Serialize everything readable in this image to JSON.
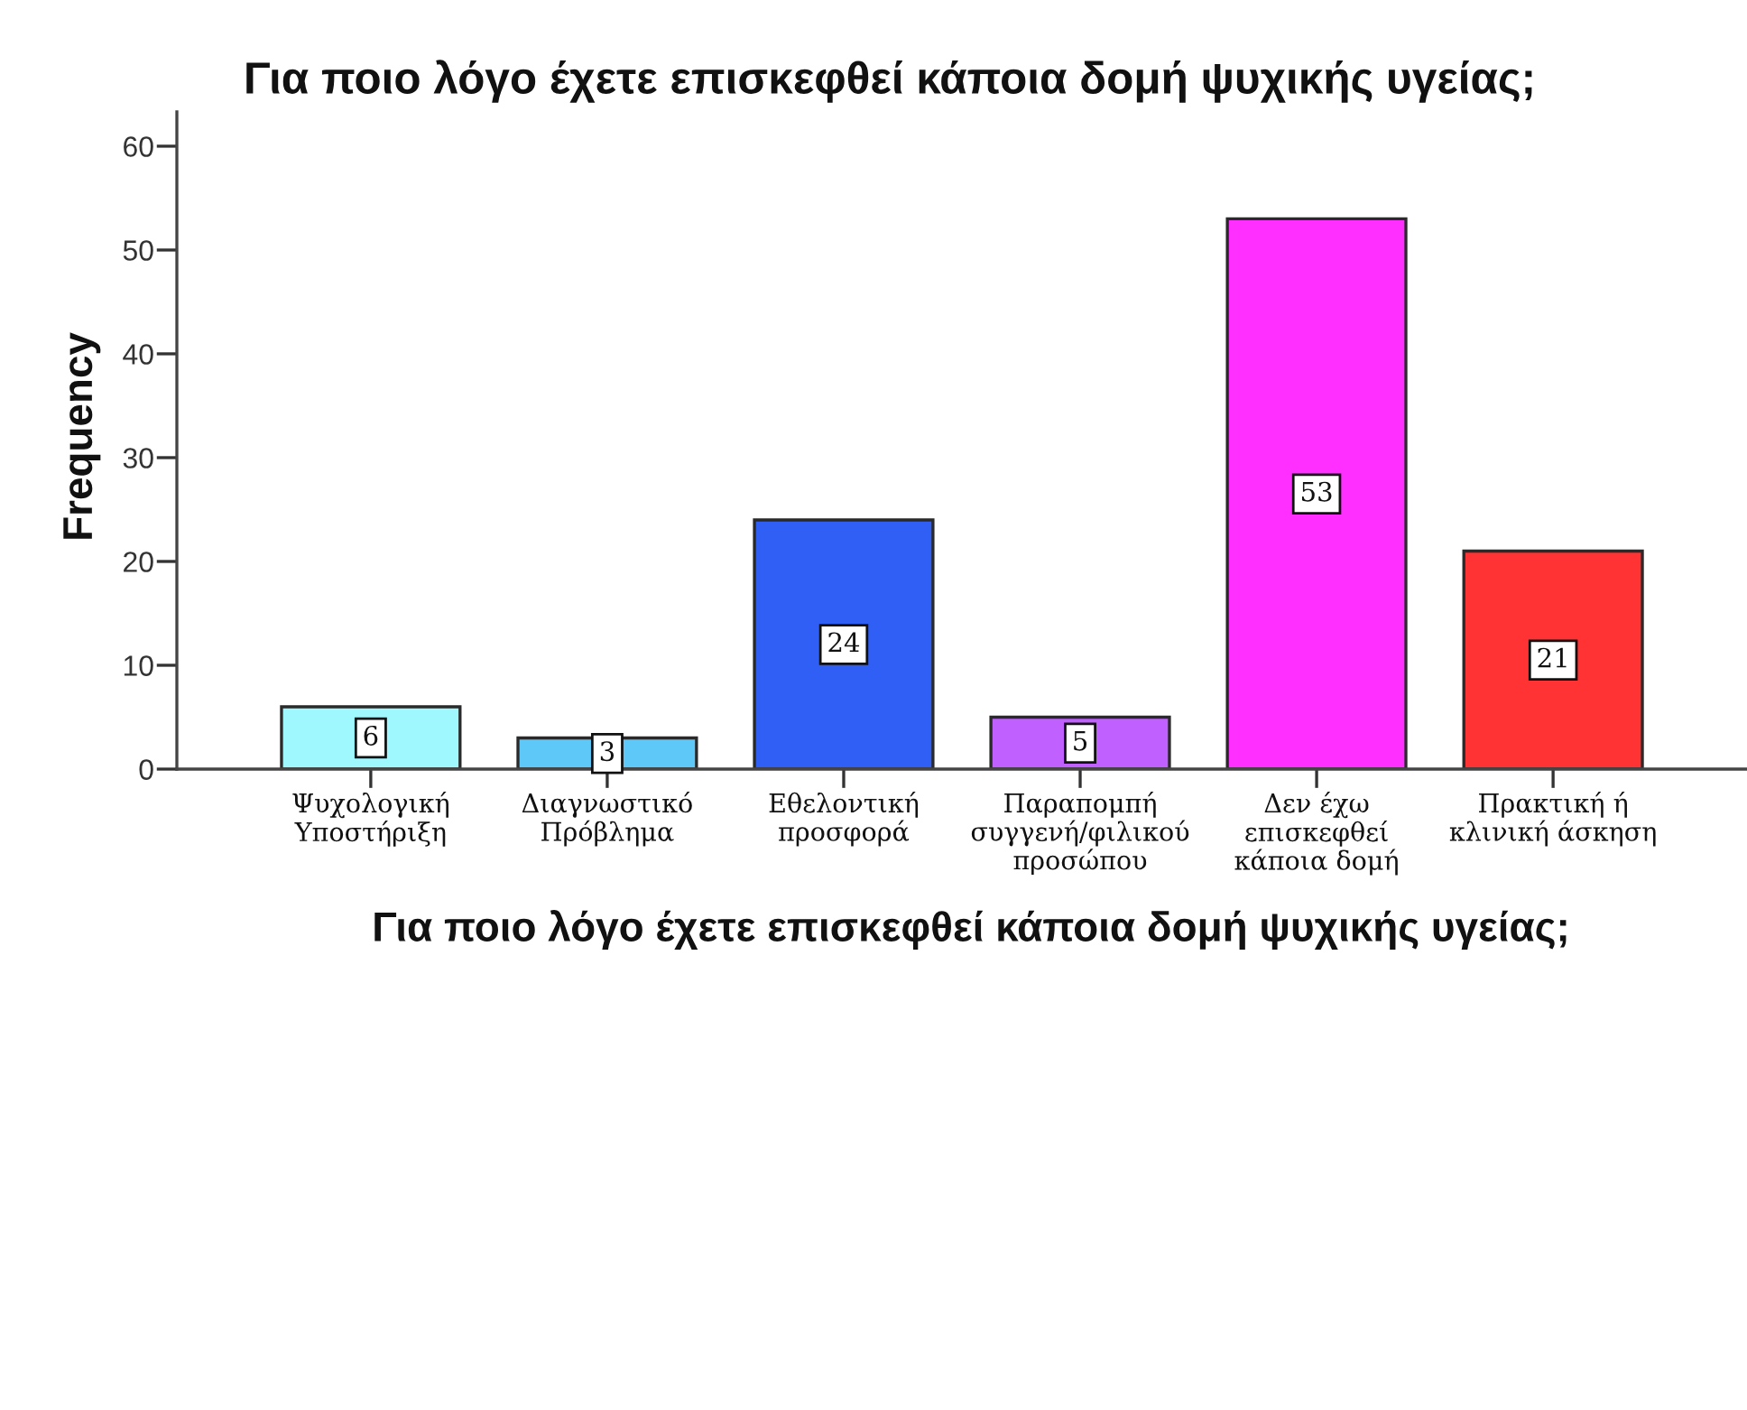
{
  "chart_data": {
    "type": "bar",
    "title": "Για ποιο λόγο έχετε επισκεφθεί κάποια δομή ψυχικής υγείας;",
    "xlabel": "Για ποιο λόγο έχετε επισκεφθεί κάποια δομή ψυχικής υγείας;",
    "ylabel": "Frequency",
    "categories": [
      "Ψυχολογική\nΥποστήριξη",
      "Διαγνωστικό\nΠρόβλημα",
      "Εθελοντική\nπροσφορά",
      "Παραπομπή\nσυγγενή/φιλικού\nπροσώπου",
      "Δεν έχω\nεπισκεφθεί\nκάποια δομή",
      "Πρακτική ή\nκλινική άσκηση"
    ],
    "values": [
      6,
      3,
      24,
      5,
      53,
      21
    ],
    "colors": [
      "#a0f8ff",
      "#5ec8f8",
      "#2f5ff5",
      "#c060ff",
      "#ff30ff",
      "#ff3333"
    ],
    "ylim": [
      0,
      63.3
    ],
    "yticks": [
      0,
      10,
      20,
      30,
      40,
      50,
      60
    ],
    "data_labels": true
  }
}
